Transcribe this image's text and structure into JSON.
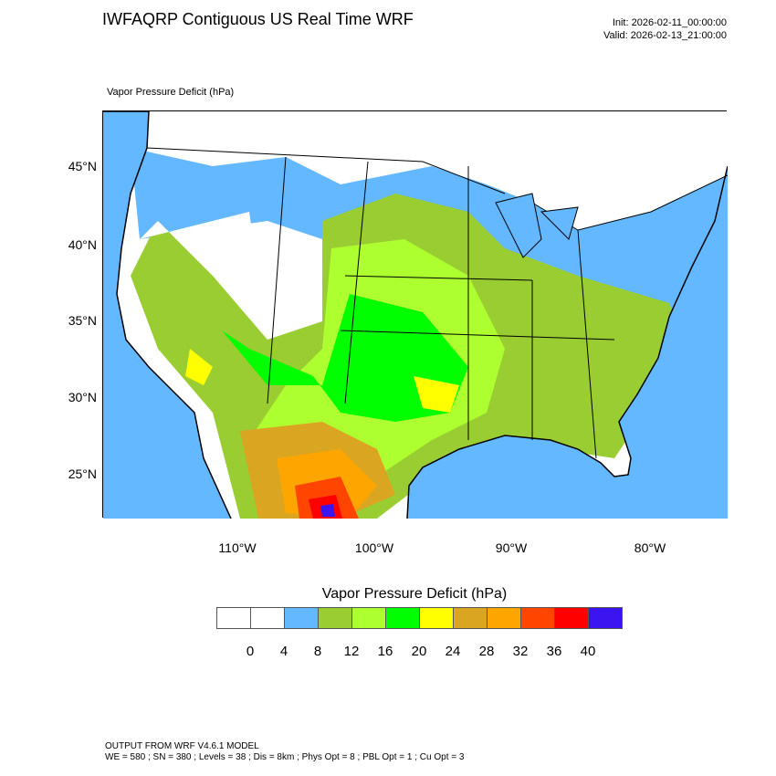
{
  "header": {
    "title": "IWFAQRP Contiguous US Real Time WRF",
    "init": "Init: 2026-02-11_00:00:00",
    "valid": "Valid: 2026-02-13_21:00:00",
    "field_label": "Vapor Pressure Deficit   (hPa)"
  },
  "map": {
    "lat_labels": [
      "45°N",
      "40°N",
      "35°N",
      "30°N",
      "25°N"
    ],
    "lon_labels": [
      "110°W",
      "100°W",
      "90°W",
      "80°W"
    ],
    "ocean_color": "#63b8ff"
  },
  "colorbar": {
    "title": "Vapor Pressure Deficit  (hPa)",
    "labels": [
      "0",
      "4",
      "8",
      "12",
      "16",
      "20",
      "24",
      "28",
      "32",
      "36",
      "40"
    ],
    "colors": [
      "#ffffff",
      "#ffffff",
      "#63b8ff",
      "#9acd32",
      "#adff2f",
      "#00ff00",
      "#ffff00",
      "#daa520",
      "#ffa500",
      "#ff4500",
      "#ff0000",
      "#3c14f0"
    ]
  },
  "footer": {
    "line1": "OUTPUT FROM WRF V4.6.1 MODEL",
    "line2": "WE = 580 ; SN = 380 ; Levels = 38 ; Dis = 8km ; Phys Opt = 8 ; PBL Opt = 1 ; Cu Opt = 3"
  }
}
